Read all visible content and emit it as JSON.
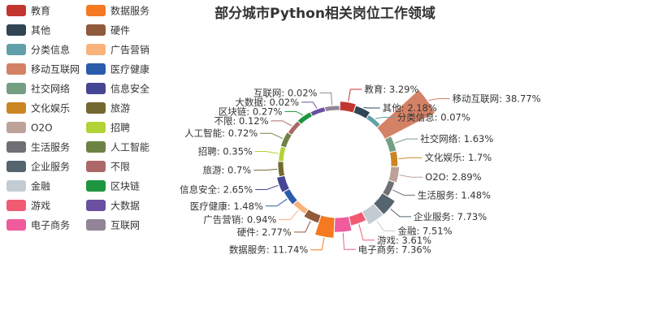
{
  "chart_data": {
    "type": "pie",
    "variant": "rose-donut",
    "title": "部分城市Python相关岗位工作领域",
    "legend_placement": "left",
    "legend_columns": 2,
    "label_suffix": "%",
    "slices": [
      {
        "name": "教育",
        "value": 3.29,
        "color": "#c23531"
      },
      {
        "name": "其他",
        "value": 2.18,
        "color": "#2f4554"
      },
      {
        "name": "分类信息",
        "value": 0.07,
        "color": "#61a0a8"
      },
      {
        "name": "移动互联网",
        "value": 38.77,
        "color": "#d48265"
      },
      {
        "name": "社交网络",
        "value": 1.63,
        "color": "#749f83"
      },
      {
        "name": "文化娱乐",
        "value": 1.7,
        "color": "#ca8622"
      },
      {
        "name": "O2O",
        "value": 2.89,
        "color": "#bda29a"
      },
      {
        "name": "生活服务",
        "value": 1.48,
        "color": "#6e7074"
      },
      {
        "name": "企业服务",
        "value": 7.73,
        "color": "#546570"
      },
      {
        "name": "金融",
        "value": 7.51,
        "color": "#c4ccd3"
      },
      {
        "name": "游戏",
        "value": 3.61,
        "color": "#f05b72"
      },
      {
        "name": "电子商务",
        "value": 7.36,
        "color": "#ef5b9c"
      },
      {
        "name": "数据服务",
        "value": 11.74,
        "color": "#f47920"
      },
      {
        "name": "硬件",
        "value": 2.77,
        "color": "#905a3d"
      },
      {
        "name": "广告营销",
        "value": 0.94,
        "color": "#fab27b"
      },
      {
        "name": "医疗健康",
        "value": 1.48,
        "color": "#2a5caa"
      },
      {
        "name": "信息安全",
        "value": 2.65,
        "color": "#444693"
      },
      {
        "name": "旅游",
        "value": 0.7,
        "color": "#726930"
      },
      {
        "name": "招聘",
        "value": 0.35,
        "color": "#b2d235"
      },
      {
        "name": "人工智能",
        "value": 0.72,
        "color": "#6d8346"
      },
      {
        "name": "不限",
        "value": 0.12,
        "color": "#ac6767"
      },
      {
        "name": "区块链",
        "value": 0.27,
        "color": "#1d953f"
      },
      {
        "name": "大数据",
        "value": 0.02,
        "color": "#6950a1"
      },
      {
        "name": "互联网",
        "value": 0.02,
        "color": "#918597"
      }
    ]
  }
}
